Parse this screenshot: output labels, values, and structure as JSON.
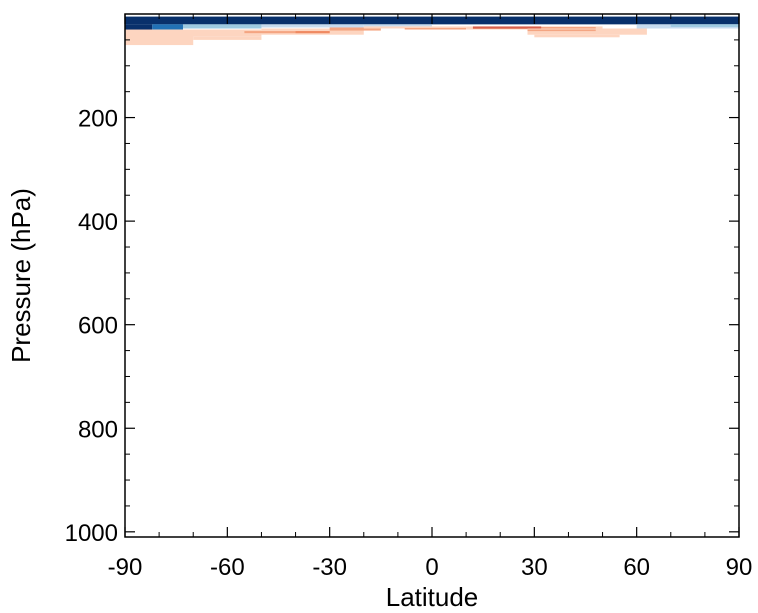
{
  "chart_data": {
    "type": "heatmap",
    "title": "",
    "xlabel": "Latitude",
    "ylabel": "Pressure (hPa)",
    "xlim": [
      -90,
      90
    ],
    "ylim": [
      1010,
      0
    ],
    "y_inverted": true,
    "x_ticks": [
      -90,
      -60,
      -30,
      0,
      30,
      60,
      90
    ],
    "x_tick_labels": [
      "-90",
      "-60",
      "-30",
      "0",
      "30",
      "60",
      "90"
    ],
    "y_ticks": [
      200,
      400,
      600,
      800,
      1000
    ],
    "y_tick_labels": [
      "200",
      "400",
      "600",
      "800",
      "1000"
    ],
    "x_minor_step": 10,
    "y_minor_step": 50,
    "grid": false,
    "legend": "none",
    "colors": {
      "dark_blue": "#08306b",
      "mid_blue": "#2171b5",
      "light_blue": "#9ecae1",
      "pale_blue": "#c6dbef",
      "pale_orange": "#fdd5c0",
      "light_red": "#f4a582",
      "mid_red": "#ef8a62",
      "red": "#d6604d"
    },
    "cells": [
      {
        "lat": [
          -90,
          90
        ],
        "p": [
          5,
          20
        ],
        "color": "dark_blue"
      },
      {
        "lat": [
          -90,
          -82
        ],
        "p": [
          20,
          35
        ],
        "color": "dark_blue"
      },
      {
        "lat": [
          -82,
          -73
        ],
        "p": [
          20,
          30
        ],
        "color": "mid_blue"
      },
      {
        "lat": [
          -73,
          -50
        ],
        "p": [
          20,
          28
        ],
        "color": "light_blue"
      },
      {
        "lat": [
          -50,
          -20
        ],
        "p": [
          20,
          26
        ],
        "color": "pale_blue"
      },
      {
        "lat": [
          -20,
          0
        ],
        "p": [
          20,
          24
        ],
        "color": "pale_blue"
      },
      {
        "lat": [
          60,
          90
        ],
        "p": [
          20,
          28
        ],
        "color": "pale_blue"
      },
      {
        "lat": [
          70,
          90
        ],
        "p": [
          20,
          25
        ],
        "color": "light_blue"
      },
      {
        "lat": [
          -90,
          -70
        ],
        "p": [
          35,
          60
        ],
        "color": "pale_orange"
      },
      {
        "lat": [
          -90,
          -50
        ],
        "p": [
          30,
          44
        ],
        "color": "pale_orange"
      },
      {
        "lat": [
          -70,
          -50
        ],
        "p": [
          44,
          50
        ],
        "color": "pale_orange"
      },
      {
        "lat": [
          -50,
          -20
        ],
        "p": [
          28,
          40
        ],
        "color": "pale_orange"
      },
      {
        "lat": [
          -55,
          -30
        ],
        "p": [
          33,
          37
        ],
        "color": "light_red"
      },
      {
        "lat": [
          -30,
          -15
        ],
        "p": [
          26,
          32
        ],
        "color": "light_red"
      },
      {
        "lat": [
          -40,
          -30
        ],
        "p": [
          33,
          37
        ],
        "color": "mid_red"
      },
      {
        "lat": [
          -20,
          10
        ],
        "p": [
          24,
          28
        ],
        "color": "pale_orange"
      },
      {
        "lat": [
          -8,
          10
        ],
        "p": [
          27,
          30
        ],
        "color": "light_red"
      },
      {
        "lat": [
          10,
          50
        ],
        "p": [
          24,
          30
        ],
        "color": "pale_orange"
      },
      {
        "lat": [
          12,
          48
        ],
        "p": [
          25,
          29
        ],
        "color": "light_red"
      },
      {
        "lat": [
          12,
          32
        ],
        "p": [
          24,
          28
        ],
        "color": "red"
      },
      {
        "lat": [
          28,
          63
        ],
        "p": [
          28,
          40
        ],
        "color": "pale_orange"
      },
      {
        "lat": [
          28,
          48
        ],
        "p": [
          30,
          33
        ],
        "color": "light_red"
      },
      {
        "lat": [
          30,
          55
        ],
        "p": [
          40,
          45
        ],
        "color": "pale_orange"
      }
    ]
  }
}
